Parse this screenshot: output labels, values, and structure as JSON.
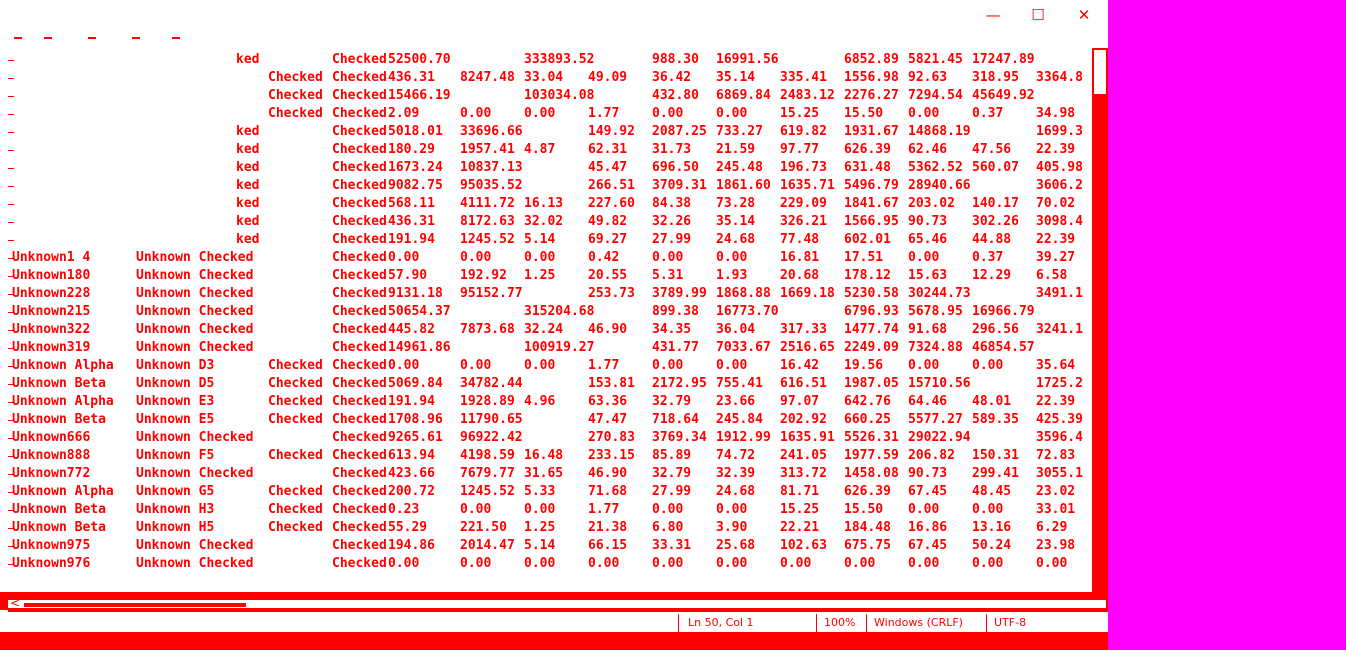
{
  "window": {
    "minimize_glyph": "—",
    "maximize_glyph": "☐",
    "close_glyph": "✕",
    "accent_color": "#ff0000",
    "desktop_color": "#ff00ff"
  },
  "editor": {
    "rows": [
      [
        "",
        "ked",
        "",
        "Checked",
        "52500.70",
        "",
        "333893.52",
        "",
        "988.30",
        "16991.56",
        "",
        "6852.89",
        "5821.45",
        "17247.89",
        ""
      ],
      [
        "",
        "",
        "Checked",
        "Checked",
        "436.31",
        "8247.48",
        "33.04",
        "49.09",
        "36.42",
        "35.14",
        "335.41",
        "1556.98",
        "92.63",
        "318.95",
        "3364.8"
      ],
      [
        "",
        "",
        "Checked",
        "Checked",
        "15466.19",
        "",
        "103034.08",
        "",
        "432.80",
        "6869.84",
        "2483.12",
        "2276.27",
        "7294.54",
        "45649.92",
        ""
      ],
      [
        "",
        "",
        "Checked",
        "Checked",
        "2.09",
        "0.00",
        "0.00",
        "1.77",
        "0.00",
        "0.00",
        "15.25",
        "15.50",
        "0.00",
        "0.37",
        "34.98"
      ],
      [
        "",
        "ked",
        "",
        "Checked",
        "5018.01",
        "33696.66",
        "",
        "149.92",
        "2087.25",
        "733.27",
        "619.82",
        "1931.67",
        "14868.19",
        "",
        "1699.3"
      ],
      [
        "",
        "ked",
        "",
        "Checked",
        "180.29",
        "1957.41",
        "4.87",
        "62.31",
        "31.73",
        "21.59",
        "97.77",
        "626.39",
        "62.46",
        "47.56",
        "22.39"
      ],
      [
        "",
        "ked",
        "",
        "Checked",
        "1673.24",
        "10837.13",
        "",
        "45.47",
        "696.50",
        "245.48",
        "196.73",
        "631.48",
        "5362.52",
        "560.07",
        "405.98"
      ],
      [
        "",
        "ked",
        "",
        "Checked",
        "9082.75",
        "95035.52",
        "",
        "266.51",
        "3709.31",
        "1861.60",
        "1635.71",
        "5496.79",
        "28940.66",
        "",
        "3606.2"
      ],
      [
        "",
        "ked",
        "",
        "Checked",
        "568.11",
        "4111.72",
        "16.13",
        "227.60",
        "84.38",
        "73.28",
        "229.09",
        "1841.67",
        "203.02",
        "140.17",
        "70.02"
      ],
      [
        "",
        "ked",
        "",
        "Checked",
        "436.31",
        "8172.63",
        "32.02",
        "49.82",
        "32.26",
        "35.14",
        "326.21",
        "1566.95",
        "90.73",
        "302.26",
        "3098.4"
      ],
      [
        "",
        "ked",
        "",
        "Checked",
        "191.94",
        "1245.52",
        "5.14",
        "69.27",
        "27.99",
        "24.68",
        "77.48",
        "602.01",
        "65.46",
        "44.88",
        "22.39"
      ],
      [
        "Unknown1 4",
        "Unknown Checked",
        "",
        "Checked",
        "0.00",
        "0.00",
        "0.00",
        "0.42",
        "0.00",
        "0.00",
        "16.81",
        "17.51",
        "0.00",
        "0.37",
        "39.27"
      ],
      [
        "Unknown180",
        "Unknown Checked",
        "",
        "Checked",
        "57.90",
        "192.92",
        "1.25",
        "20.55",
        "5.31",
        "1.93",
        "20.68",
        "178.12",
        "15.63",
        "12.29",
        "6.58"
      ],
      [
        "Unknown228",
        "Unknown Checked",
        "",
        "Checked",
        "9131.18",
        "95152.77",
        "",
        "253.73",
        "3789.99",
        "1868.88",
        "1669.18",
        "5230.58",
        "30244.73",
        "",
        "3491.1"
      ],
      [
        "Unknown215",
        "Unknown Checked",
        "",
        "Checked",
        "50654.37",
        "",
        "315204.68",
        "",
        "899.38",
        "16773.70",
        "",
        "6796.93",
        "5678.95",
        "16966.79",
        ""
      ],
      [
        "Unknown322",
        "Unknown Checked",
        "",
        "Checked",
        "445.82",
        "7873.68",
        "32.24",
        "46.90",
        "34.35",
        "36.04",
        "317.33",
        "1477.74",
        "91.68",
        "296.56",
        "3241.1"
      ],
      [
        "Unknown319",
        "Unknown Checked",
        "",
        "Checked",
        "14961.86",
        "",
        "100919.27",
        "",
        "431.77",
        "7033.67",
        "2516.65",
        "2249.09",
        "7324.88",
        "46854.57",
        ""
      ],
      [
        "Unknown Alpha",
        "Unknown D3",
        "Checked",
        "Checked",
        "0.00",
        "0.00",
        "0.00",
        "1.77",
        "0.00",
        "0.00",
        "16.42",
        "19.56",
        "0.00",
        "0.00",
        "35.64"
      ],
      [
        "Unknown Beta",
        "Unknown D5",
        "Checked",
        "Checked",
        "5069.84",
        "34782.44",
        "",
        "153.81",
        "2172.95",
        "755.41",
        "616.51",
        "1987.05",
        "15710.56",
        "",
        "1725.2"
      ],
      [
        "Unknown Alpha",
        "Unknown E3",
        "Checked",
        "Checked",
        "191.94",
        "1928.89",
        "4.96",
        "63.36",
        "32.79",
        "23.66",
        "97.07",
        "642.76",
        "64.46",
        "48.01",
        "22.39"
      ],
      [
        "Unknown Beta",
        "Unknown E5",
        "Checked",
        "Checked",
        "1708.96",
        "11790.65",
        "",
        "47.47",
        "718.64",
        "245.84",
        "202.92",
        "660.25",
        "5577.27",
        "589.35",
        "425.39"
      ],
      [
        "Unknown666",
        "Unknown Checked",
        "",
        "Checked",
        "9265.61",
        "96922.42",
        "",
        "270.83",
        "3769.34",
        "1912.99",
        "1635.91",
        "5526.31",
        "29022.94",
        "",
        "3596.4"
      ],
      [
        "Unknown888",
        "Unknown F5",
        "Checked",
        "Checked",
        "613.94",
        "4198.59",
        "16.48",
        "233.15",
        "85.89",
        "74.72",
        "241.05",
        "1977.59",
        "206.82",
        "150.31",
        "72.83"
      ],
      [
        "Unknown772",
        "Unknown Checked",
        "",
        "Checked",
        "423.66",
        "7679.77",
        "31.65",
        "46.90",
        "32.79",
        "32.39",
        "313.72",
        "1458.08",
        "90.73",
        "299.41",
        "3055.1"
      ],
      [
        "Unknown Alpha",
        "Unknown G5",
        "Checked",
        "Checked",
        "200.72",
        "1245.52",
        "5.33",
        "71.68",
        "27.99",
        "24.68",
        "81.71",
        "626.39",
        "67.45",
        "48.45",
        "23.02"
      ],
      [
        "Unknown Beta",
        "Unknown H3",
        "Checked",
        "Checked",
        "0.23",
        "0.00",
        "0.00",
        "1.77",
        "0.00",
        "0.00",
        "15.25",
        "15.50",
        "0.00",
        "0.00",
        "33.01"
      ],
      [
        "Unknown Beta",
        "Unknown H5",
        "Checked",
        "Checked",
        "55.29",
        "221.50",
        "1.25",
        "21.38",
        "6.80",
        "3.90",
        "22.21",
        "184.48",
        "16.86",
        "13.16",
        "6.29"
      ],
      [
        "Unknown975",
        "Unknown Checked",
        "",
        "Checked",
        "194.86",
        "2014.47",
        "5.14",
        "66.15",
        "33.31",
        "25.68",
        "102.63",
        "675.75",
        "67.45",
        "50.24",
        "23.98"
      ],
      [
        "Unknown976",
        "Unknown Checked",
        "",
        "Checked",
        "0.00",
        "0.00",
        "0.00",
        "0.00",
        "0.00",
        "0.00",
        "0.00",
        "0.00",
        "0.00",
        "0.00",
        "0.00"
      ]
    ]
  },
  "statusbar": {
    "position": "Ln 50, Col 1",
    "zoom": "100%",
    "line_ending": "Windows (CRLF)",
    "encoding": "UTF-8"
  },
  "scrollbar": {
    "left_arrow": "<"
  }
}
